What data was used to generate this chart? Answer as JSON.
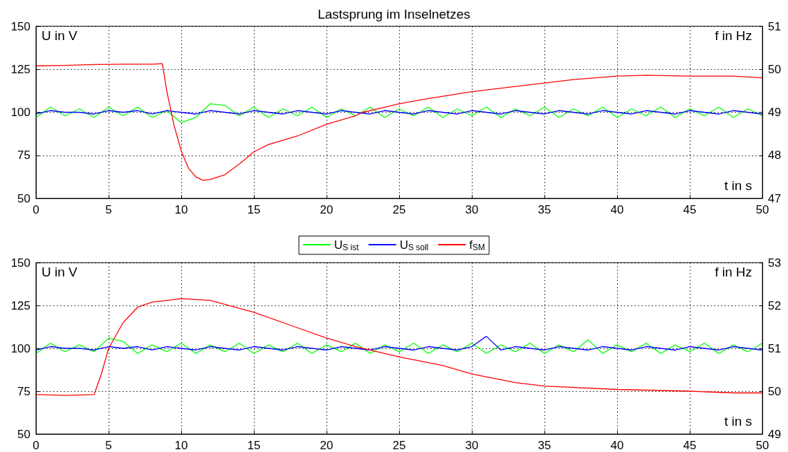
{
  "chart_data": [
    {
      "type": "line",
      "title": "Lastsprung im Inselnetzes",
      "xlabel": "t in s",
      "ylabel": "U in V",
      "y2label": "f in Hz",
      "xlim": [
        0,
        50
      ],
      "xticks": [
        0,
        5,
        10,
        15,
        20,
        25,
        30,
        35,
        40,
        45,
        50
      ],
      "ylim": [
        50,
        150
      ],
      "yticks": [
        50,
        75,
        100,
        125,
        150
      ],
      "y2lim": [
        47,
        51
      ],
      "y2ticks": [
        47,
        48,
        49,
        50,
        51
      ],
      "grid": true,
      "legend": "bottom",
      "marker": "none",
      "line_style": "solid",
      "x": [
        0,
        1,
        2,
        3,
        4,
        5,
        6,
        7,
        8,
        9,
        10,
        11,
        12,
        13,
        14,
        15,
        16,
        17,
        18,
        19,
        20,
        21,
        22,
        23,
        24,
        25,
        26,
        27,
        28,
        29,
        30,
        31,
        32,
        33,
        34,
        35,
        36,
        37,
        38,
        39,
        40,
        41,
        42,
        43,
        44,
        45,
        46,
        47,
        48,
        49,
        50
      ],
      "series": [
        {
          "name": "U$_{S ist}$",
          "color": "#00ff00",
          "values": [
            97,
            103,
            98,
            102,
            97,
            103,
            98,
            103,
            97,
            101,
            94,
            97,
            105,
            104,
            98,
            103,
            97,
            102,
            98,
            103,
            97,
            102,
            98,
            103,
            97,
            102,
            98,
            103,
            97,
            102,
            98,
            103,
            97,
            102,
            98,
            103,
            97,
            102,
            98,
            103,
            97,
            102,
            98,
            103,
            97,
            102,
            98,
            103,
            97,
            102,
            98
          ]
        },
        {
          "name": "U$_{S soll}$",
          "color": "#0000ff",
          "values": [
            99,
            101,
            100,
            100,
            99,
            101,
            100,
            101,
            99,
            101,
            100,
            99,
            101,
            100,
            99,
            101,
            100,
            99,
            101,
            100,
            99,
            101,
            100,
            99,
            101,
            100,
            99,
            101,
            100,
            99,
            101,
            100,
            99,
            101,
            100,
            99,
            101,
            100,
            99,
            101,
            100,
            99,
            101,
            100,
            99,
            101,
            100,
            99,
            101,
            100,
            99
          ]
        },
        {
          "name": "f$_{SM}$",
          "color": "#ff0000",
          "axis": "y2",
          "x": [
            0,
            2,
            4,
            6,
            8,
            8.7,
            9,
            9.5,
            10,
            10.5,
            11,
            11.5,
            12,
            13,
            14,
            15,
            16,
            18,
            20,
            22,
            22.5,
            24,
            25,
            27,
            30,
            32,
            35,
            37,
            40,
            42,
            45,
            48,
            50
          ],
          "values": [
            50.08,
            50.09,
            50.11,
            50.12,
            50.12,
            50.13,
            49.5,
            48.7,
            48.1,
            47.7,
            47.5,
            47.42,
            47.44,
            47.55,
            47.8,
            48.08,
            48.25,
            48.45,
            48.72,
            48.92,
            49.0,
            49.12,
            49.2,
            49.32,
            49.48,
            49.56,
            49.68,
            49.76,
            49.84,
            49.86,
            49.84,
            49.84,
            49.8
          ]
        }
      ]
    },
    {
      "type": "line",
      "xlabel": "t in s",
      "ylabel": "U in V",
      "y2label": "f in Hz",
      "xlim": [
        0,
        50
      ],
      "xticks": [
        0,
        5,
        10,
        15,
        20,
        25,
        30,
        35,
        40,
        45,
        50
      ],
      "ylim": [
        50,
        150
      ],
      "yticks": [
        50,
        75,
        100,
        125,
        150
      ],
      "y2lim": [
        49,
        53
      ],
      "y2ticks": [
        49,
        50,
        51,
        52,
        53
      ],
      "grid": true,
      "marker": "none",
      "line_style": "solid",
      "x": [
        0,
        1,
        2,
        3,
        4,
        5,
        6,
        7,
        8,
        9,
        10,
        11,
        12,
        13,
        14,
        15,
        16,
        17,
        18,
        19,
        20,
        21,
        22,
        23,
        24,
        25,
        26,
        27,
        28,
        29,
        30,
        31,
        32,
        33,
        34,
        35,
        36,
        37,
        38,
        39,
        40,
        41,
        42,
        43,
        44,
        45,
        46,
        47,
        48,
        49,
        50
      ],
      "series": [
        {
          "color": "#00ff00",
          "values": [
            97,
            103,
            98,
            102,
            98,
            106,
            104,
            97,
            102,
            98,
            103,
            97,
            102,
            98,
            103,
            97,
            102,
            98,
            103,
            97,
            102,
            98,
            103,
            97,
            102,
            98,
            103,
            97,
            102,
            98,
            103,
            97,
            102,
            98,
            103,
            97,
            102,
            98,
            105,
            97,
            102,
            98,
            103,
            97,
            102,
            98,
            103,
            97,
            102,
            98,
            103
          ]
        },
        {
          "color": "#0000ff",
          "values": [
            99,
            101,
            100,
            100,
            99,
            101,
            100,
            101,
            99,
            101,
            100,
            99,
            101,
            100,
            99,
            101,
            100,
            99,
            101,
            100,
            99,
            101,
            100,
            99,
            101,
            100,
            99,
            101,
            100,
            99,
            101,
            107,
            99,
            101,
            100,
            99,
            101,
            100,
            99,
            101,
            100,
            99,
            101,
            100,
            99,
            101,
            100,
            99,
            101,
            100,
            99
          ]
        },
        {
          "color": "#ff0000",
          "axis": "y2",
          "x": [
            0,
            2,
            4,
            4.5,
            5,
            6,
            7,
            8,
            10,
            12,
            15,
            18,
            20,
            22,
            25,
            28,
            30,
            33,
            35,
            40,
            45,
            48,
            50
          ],
          "values": [
            49.92,
            49.9,
            49.92,
            50.4,
            51.0,
            51.6,
            51.96,
            52.08,
            52.16,
            52.12,
            51.84,
            51.48,
            51.24,
            51.04,
            50.8,
            50.6,
            50.4,
            50.2,
            50.12,
            50.04,
            50.0,
            49.96,
            49.96
          ]
        }
      ]
    }
  ]
}
